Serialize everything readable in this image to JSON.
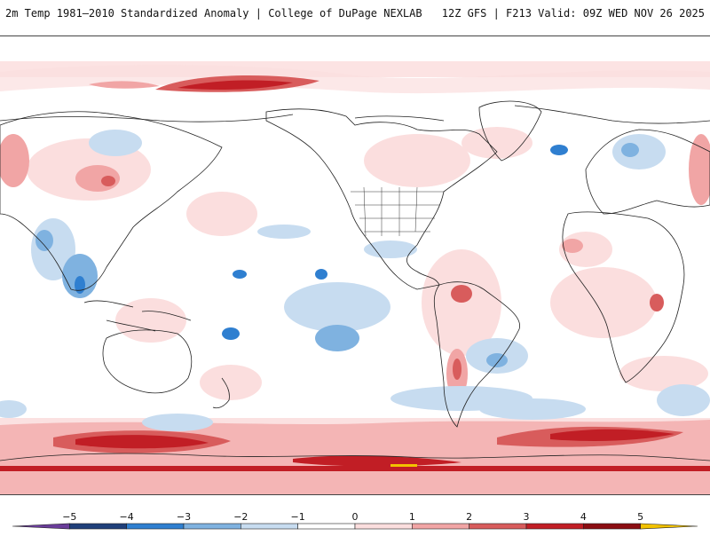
{
  "header": {
    "left_title": "2m Temp 1981–2010 Standardized Anomaly | College of DuPage NEXLAB",
    "right_title": "12Z GFS | F213 Valid: 09Z WED NOV 26 2025"
  },
  "colorbar": {
    "labels": [
      "−5",
      "−4",
      "−3",
      "−2",
      "−1",
      "0",
      "1",
      "2",
      "3",
      "4",
      "5"
    ],
    "colors": [
      "#6a3d9a",
      "#1f3f7a",
      "#2f7fd0",
      "#7fb2e0",
      "#c7dcf0",
      "#ffffff",
      "#fbdede",
      "#f1a5a5",
      "#d85c5c",
      "#c11e25",
      "#8b0d12",
      "#f2c200"
    ]
  },
  "map": {
    "ocean_fill": "#ffffff",
    "coastline_color": "#222222"
  }
}
